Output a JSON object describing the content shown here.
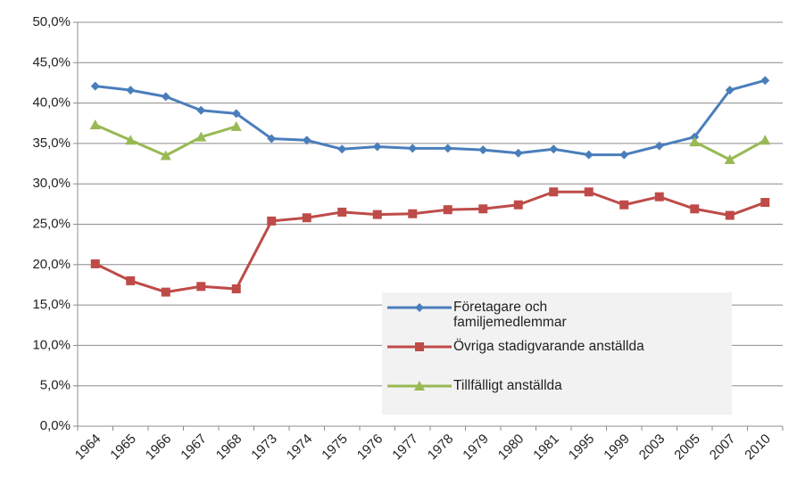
{
  "chart_data": {
    "type": "line",
    "categories": [
      "1964",
      "1965",
      "1966",
      "1967",
      "1968",
      "1973",
      "1974",
      "1975",
      "1976",
      "1977",
      "1978",
      "1979",
      "1980",
      "1981",
      "1995",
      "1999",
      "2003",
      "2005",
      "2007",
      "2010"
    ],
    "series": [
      {
        "name": "Företagare och familjemedlemmar",
        "color": "#4a7ebb",
        "marker": "diamond",
        "values": [
          42.1,
          41.6,
          40.8,
          39.1,
          38.7,
          35.6,
          35.4,
          34.3,
          34.6,
          34.4,
          34.4,
          34.2,
          33.8,
          34.3,
          33.6,
          33.6,
          34.7,
          35.8,
          41.6,
          42.8
        ]
      },
      {
        "name": "Övriga stadigvarande anställda",
        "color": "#be4b48",
        "marker": "square",
        "values": [
          20.1,
          18.0,
          16.6,
          17.3,
          17.0,
          25.4,
          25.8,
          26.5,
          26.2,
          26.3,
          26.8,
          26.9,
          27.4,
          29.0,
          29.0,
          27.4,
          28.4,
          26.9,
          26.1,
          27.7
        ]
      },
      {
        "name": "Tillfälligt anställda",
        "color": "#98b954",
        "marker": "triangle",
        "values": [
          37.3,
          35.4,
          33.5,
          35.8,
          37.1,
          null,
          null,
          null,
          null,
          null,
          null,
          null,
          null,
          null,
          null,
          null,
          null,
          35.2,
          33.0,
          35.4
        ]
      }
    ],
    "ylim": [
      0,
      50
    ],
    "yticks": [
      {
        "value": 0,
        "label": "0,0%"
      },
      {
        "value": 5,
        "label": "5,0%"
      },
      {
        "value": 10,
        "label": "10,0%"
      },
      {
        "value": 15,
        "label": "15,0%"
      },
      {
        "value": 20,
        "label": "20,0%"
      },
      {
        "value": 25,
        "label": "25,0%"
      },
      {
        "value": 30,
        "label": "30,0%"
      },
      {
        "value": 35,
        "label": "35,0%"
      },
      {
        "value": 40,
        "label": "40,0%"
      },
      {
        "value": 45,
        "label": "45,0%"
      },
      {
        "value": 50,
        "label": "50,0%"
      }
    ],
    "grid": true,
    "legend": "lower right"
  }
}
